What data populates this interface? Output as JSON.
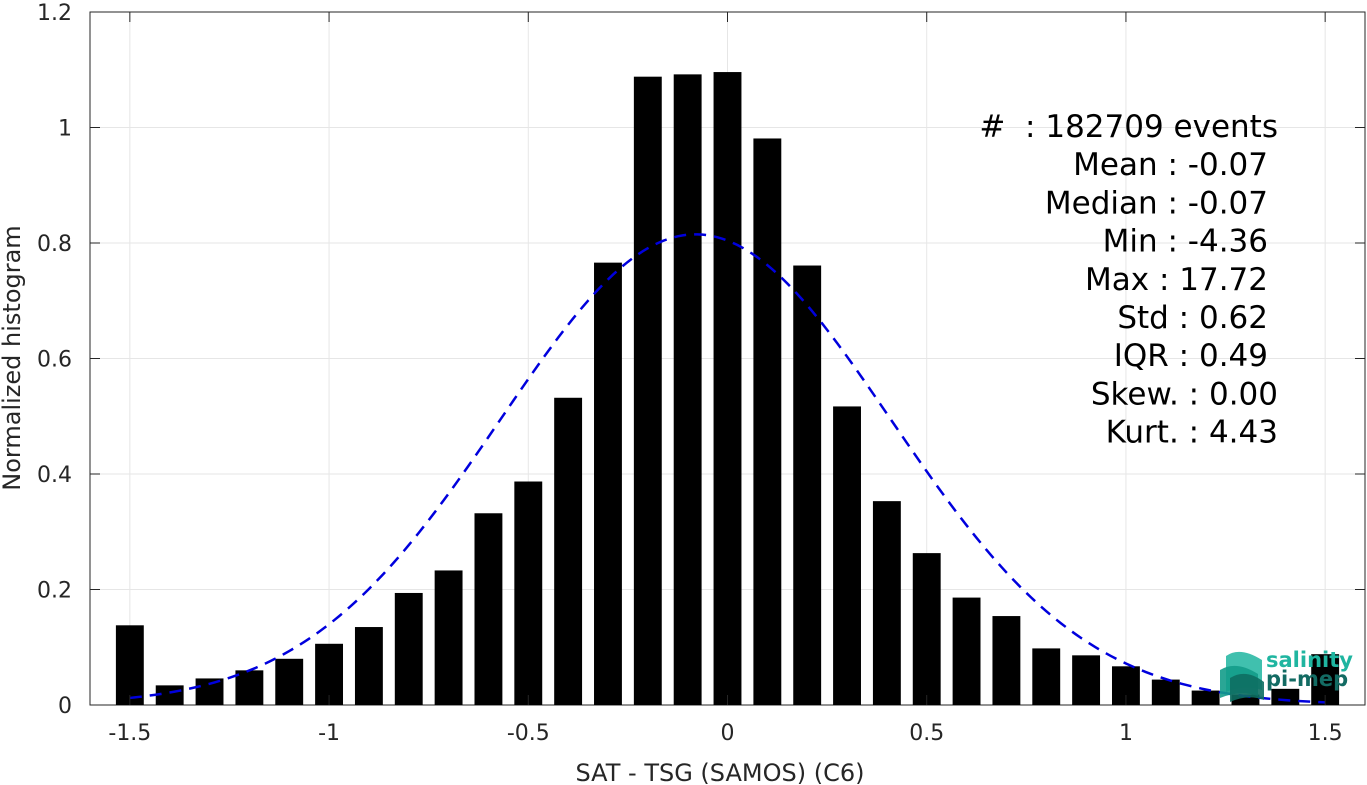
{
  "chart_data": {
    "type": "bar",
    "xlabel": "SAT - TSG (SAMOS) (C6)",
    "ylabel": "Normalized histogram",
    "xlim": [
      -1.6,
      1.6
    ],
    "ylim": [
      0,
      1.2
    ],
    "xticks": [
      -1.5,
      -1,
      -0.5,
      0,
      0.5,
      1,
      1.5
    ],
    "xtick_labels": [
      "-1.5",
      "-1",
      "-0.5",
      "0",
      "0.5",
      "1",
      "1.5"
    ],
    "yticks": [
      0,
      0.2,
      0.4,
      0.6,
      0.8,
      1,
      1.2
    ],
    "ytick_labels": [
      "0",
      "0.2",
      "0.4",
      "0.6",
      "0.8",
      "1",
      "1.2"
    ],
    "grid": true,
    "bar_width": 0.07,
    "bars": {
      "x": [
        -1.5,
        -1.4,
        -1.3,
        -1.2,
        -1.1,
        -1.0,
        -0.9,
        -0.8,
        -0.7,
        -0.6,
        -0.5,
        -0.4,
        -0.3,
        -0.2,
        -0.1,
        0.0,
        0.1,
        0.2,
        0.3,
        0.4,
        0.5,
        0.6,
        0.7,
        0.8,
        0.9,
        1.0,
        1.1,
        1.2,
        1.3,
        1.4,
        1.5
      ],
      "values": [
        0.138,
        0.034,
        0.046,
        0.06,
        0.08,
        0.106,
        0.135,
        0.194,
        0.233,
        0.332,
        0.387,
        0.532,
        0.766,
        1.088,
        1.092,
        1.096,
        0.981,
        0.761,
        0.517,
        0.353,
        0.263,
        0.186,
        0.154,
        0.098,
        0.086,
        0.067,
        0.044,
        0.025,
        0.018,
        0.028,
        0.088
      ],
      "color": "#000000"
    },
    "fit": {
      "type": "gaussian",
      "mean": -0.08,
      "std": 0.49,
      "peak": 0.815,
      "x_range": [
        -1.5,
        1.5
      ],
      "color": "#0000dd",
      "style": "dashed"
    },
    "annotation": {
      "placement": "top-right",
      "lines": [
        "#  : 182709 events",
        "Mean : -0.07",
        "Median : -0.07",
        "Min : -4.36",
        "Max : 17.72",
        "Std : 0.62",
        "IQR : 0.49",
        "Skew. : 0.00",
        "Kurt. : 4.43"
      ]
    }
  },
  "logo": {
    "line1": "salinity",
    "line2": "pi-mep",
    "color1": "#1fb5a0",
    "color2": "#136b63"
  }
}
